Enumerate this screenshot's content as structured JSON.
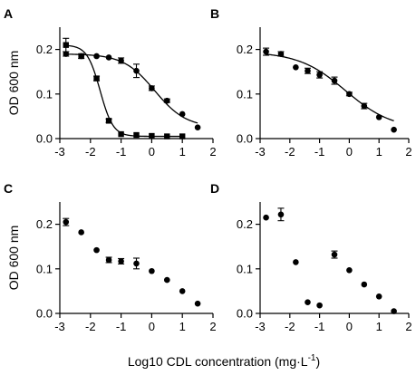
{
  "figure": {
    "xlabel_main": "Log10 CDL concentration (mg·L",
    "xlabel_sup": "-1",
    "xlabel_close": ")",
    "ylabel": "OD 600 nm"
  },
  "chart_data": [
    {
      "panel": "A",
      "type": "scatter",
      "xlim": [
        -3,
        2
      ],
      "ylim": [
        0,
        0.25
      ],
      "xticks": [
        "-3",
        "-2",
        "-1",
        "0",
        "1",
        "2"
      ],
      "yticks": [
        "0.0",
        "0.1",
        "0.2"
      ],
      "ylabel": "OD 600 nm",
      "xlabel": "",
      "series": [
        {
          "marker": "square",
          "x": [
            -2.8,
            -2.3,
            -1.8,
            -1.4,
            -1.0,
            -0.5,
            0.0,
            0.5,
            1.0
          ],
          "y": [
            0.21,
            0.185,
            0.135,
            0.04,
            0.01,
            0.008,
            0.006,
            0.005,
            0.005
          ],
          "err": [
            0.015,
            0.005,
            0.005,
            0.004,
            0.003,
            0.002,
            0.002,
            0.002,
            0.002
          ],
          "fit": true
        },
        {
          "marker": "circle",
          "x": [
            -2.8,
            -2.3,
            -1.8,
            -1.4,
            -1.0,
            -0.5,
            0.0,
            0.5,
            1.0,
            1.5
          ],
          "y": [
            0.19,
            0.185,
            0.185,
            0.182,
            0.175,
            0.152,
            0.113,
            0.085,
            0.055,
            0.025
          ],
          "err": [
            0.005,
            0.003,
            0.003,
            0.003,
            0.006,
            0.015,
            0.005,
            0.004,
            0.003,
            0.002
          ],
          "fit": true
        }
      ]
    },
    {
      "panel": "B",
      "type": "scatter",
      "xlim": [
        -3,
        2
      ],
      "ylim": [
        0,
        0.25
      ],
      "xticks": [
        "-3",
        "-2",
        "-1",
        "0",
        "1",
        "2"
      ],
      "yticks": [
        "0.0",
        "0.1",
        "0.2"
      ],
      "ylabel": "",
      "xlabel": "",
      "series": [
        {
          "marker": "circle",
          "x": [
            -2.8,
            -2.3,
            -1.8,
            -1.4,
            -1.0,
            -0.5,
            0.0,
            0.5,
            1.0,
            1.5
          ],
          "y": [
            0.195,
            0.19,
            0.16,
            0.152,
            0.143,
            0.13,
            0.1,
            0.073,
            0.048,
            0.02
          ],
          "err": [
            0.008,
            0.005,
            0.003,
            0.006,
            0.007,
            0.008,
            0.004,
            0.006,
            0.003,
            0.002
          ],
          "fit": true
        }
      ]
    },
    {
      "panel": "C",
      "type": "scatter",
      "xlim": [
        -3,
        2
      ],
      "ylim": [
        0,
        0.25
      ],
      "xticks": [
        "-3",
        "-2",
        "-1",
        "0",
        "1",
        "2"
      ],
      "yticks": [
        "0.0",
        "0.1",
        "0.2"
      ],
      "ylabel": "OD 600 nm",
      "xlabel": "",
      "series": [
        {
          "marker": "circle",
          "x": [
            -2.8,
            -2.3,
            -1.8,
            -1.4,
            -1.0,
            -0.5,
            0.0,
            0.5,
            1.0,
            1.5
          ],
          "y": [
            0.205,
            0.182,
            0.142,
            0.12,
            0.117,
            0.112,
            0.095,
            0.075,
            0.05,
            0.022
          ],
          "err": [
            0.008,
            0.003,
            0.003,
            0.006,
            0.006,
            0.012,
            0.003,
            0.003,
            0.003,
            0.002
          ],
          "fit": false
        }
      ]
    },
    {
      "panel": "D",
      "type": "scatter",
      "xlim": [
        -3,
        2
      ],
      "ylim": [
        0,
        0.25
      ],
      "xticks": [
        "-3",
        "-2",
        "-1",
        "0",
        "1",
        "2"
      ],
      "yticks": [
        "0.0",
        "0.1",
        "0.2"
      ],
      "ylabel": "",
      "xlabel": "",
      "series": [
        {
          "marker": "circle",
          "x": [
            -2.8,
            -2.3,
            -1.8,
            -1.4,
            -1.0,
            -0.5,
            0.0,
            0.5,
            1.0,
            1.5
          ],
          "y": [
            0.215,
            0.222,
            0.115,
            0.025,
            0.018,
            0.132,
            0.097,
            0.065,
            0.038,
            0.005
          ],
          "err": [
            0.003,
            0.014,
            0.003,
            0.002,
            0.002,
            0.008,
            0.003,
            0.003,
            0.002,
            0.001
          ],
          "fit": false
        }
      ]
    }
  ]
}
